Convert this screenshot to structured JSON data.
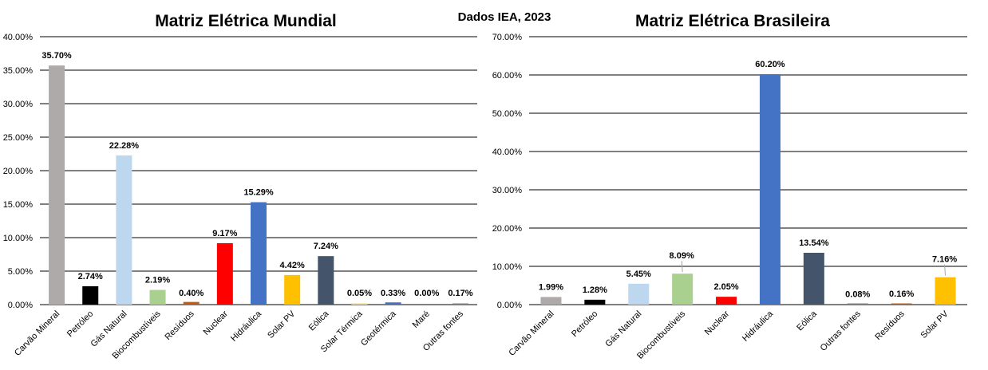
{
  "source_note": "Dados IEA, 2023",
  "chart_data": [
    {
      "type": "bar",
      "title": "Matriz Elétrica Mundial",
      "xlabel": "",
      "ylabel": "",
      "ylim": [
        0,
        40
      ],
      "yticks": [
        "0.00%",
        "5.00%",
        "10.00%",
        "15.00%",
        "20.00%",
        "25.00%",
        "30.00%",
        "35.00%",
        "40.00%"
      ],
      "grid": true,
      "categories": [
        "Carvão Mineral",
        "Petróleo",
        "Gás Natural",
        "Biocombustíveis",
        "Resíduos",
        "Nuclear",
        "Hidráulica",
        "Solar PV",
        "Eólica",
        "Solar Térmica",
        "Geotérmica",
        "Maré",
        "Outras fontes"
      ],
      "values": [
        35.7,
        2.74,
        22.28,
        2.19,
        0.4,
        9.17,
        15.29,
        4.42,
        7.24,
        0.05,
        0.33,
        0.0,
        0.17
      ],
      "labels": [
        "35.70%",
        "2.74%",
        "22.28%",
        "2.19%",
        "0.40%",
        "9.17%",
        "15.29%",
        "4.42%",
        "7.24%",
        "0.05%",
        "0.33%",
        "0.00%",
        "0.17%"
      ],
      "colors": [
        "#aeaaaa",
        "#000000",
        "#bdd7ee",
        "#a9d08e",
        "#c55a11",
        "#ff0000",
        "#4472c4",
        "#ffc000",
        "#44546a",
        "#ffd966",
        "#4472c4",
        "#5b9bd5",
        "#7f7f7f"
      ]
    },
    {
      "type": "bar",
      "title": "Matriz Elétrica Brasileira",
      "xlabel": "",
      "ylabel": "",
      "ylim": [
        0,
        70
      ],
      "yticks": [
        "0.00%",
        "10.00%",
        "20.00%",
        "30.00%",
        "40.00%",
        "50.00%",
        "60.00%",
        "70.00%"
      ],
      "grid": true,
      "categories": [
        "Carvão Mineral",
        "Petróleo",
        "Gás Natural",
        "Biocombustíveis",
        "Nuclear",
        "Hidráulica",
        "Eólica",
        "Outras fontes",
        "Resíduos",
        "Solar PV"
      ],
      "values": [
        1.99,
        1.28,
        5.45,
        8.09,
        2.05,
        60.2,
        13.54,
        0.08,
        0.16,
        7.16
      ],
      "labels": [
        "1.99%",
        "1.28%",
        "5.45%",
        "8.09%",
        "2.05%",
        "60.20%",
        "13.54%",
        "0.08%",
        "0.16%",
        "7.16%"
      ],
      "colors": [
        "#aeaaaa",
        "#000000",
        "#bdd7ee",
        "#a9d08e",
        "#ff0000",
        "#4472c4",
        "#44546a",
        "#7f7f7f",
        "#c55a11",
        "#ffc000"
      ]
    }
  ]
}
